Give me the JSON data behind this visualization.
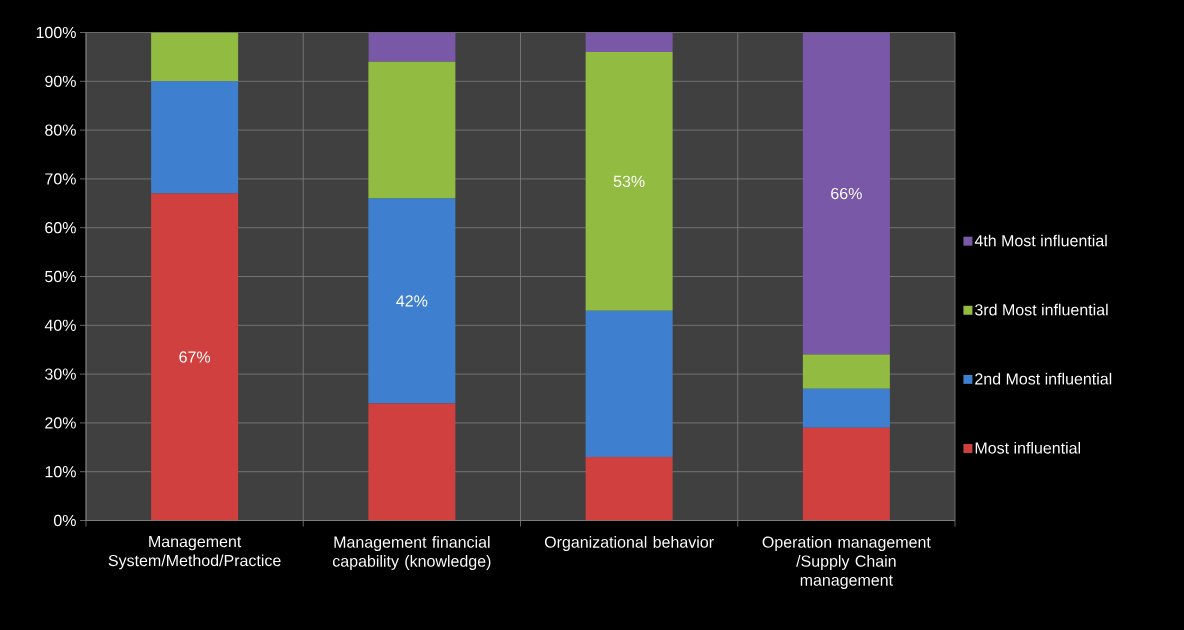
{
  "chart_data": {
    "type": "bar",
    "stacked": true,
    "categories": [
      "Management System/Method/Practice",
      "Management financial capability (knowledge)",
      "Organizational behavior",
      "Operation management /Supply Chain management"
    ],
    "series": [
      {
        "name": "Most influential",
        "color": "#d0403e",
        "values": [
          67,
          24,
          13,
          19
        ],
        "value_labels": [
          "67%",
          null,
          null,
          null
        ]
      },
      {
        "name": "2nd Most influential",
        "color": "#3f7fcf",
        "values": [
          23,
          42,
          30,
          8
        ],
        "value_labels": [
          null,
          "42%",
          null,
          null
        ]
      },
      {
        "name": "3rd Most influential",
        "color": "#92bb42",
        "values": [
          10,
          28,
          53,
          7
        ],
        "value_labels": [
          null,
          null,
          "53%",
          null
        ]
      },
      {
        "name": "4th Most influential",
        "color": "#7a58a8",
        "values": [
          null,
          6,
          4,
          66
        ],
        "value_labels": [
          null,
          null,
          null,
          "66%"
        ]
      }
    ],
    "ylim": [
      0,
      100
    ],
    "yticks": [
      {
        "value": 0,
        "label": "0%"
      },
      {
        "value": 10,
        "label": "10%"
      },
      {
        "value": 20,
        "label": "20%"
      },
      {
        "value": 30,
        "label": "30%"
      },
      {
        "value": 40,
        "label": "40%"
      },
      {
        "value": 50,
        "label": "50%"
      },
      {
        "value": 60,
        "label": "60%"
      },
      {
        "value": 70,
        "label": "70%"
      },
      {
        "value": 80,
        "label": "80%"
      },
      {
        "value": 90,
        "label": "90%"
      },
      {
        "value": 100,
        "label": "100%"
      }
    ],
    "grid": true,
    "legend": "right"
  }
}
